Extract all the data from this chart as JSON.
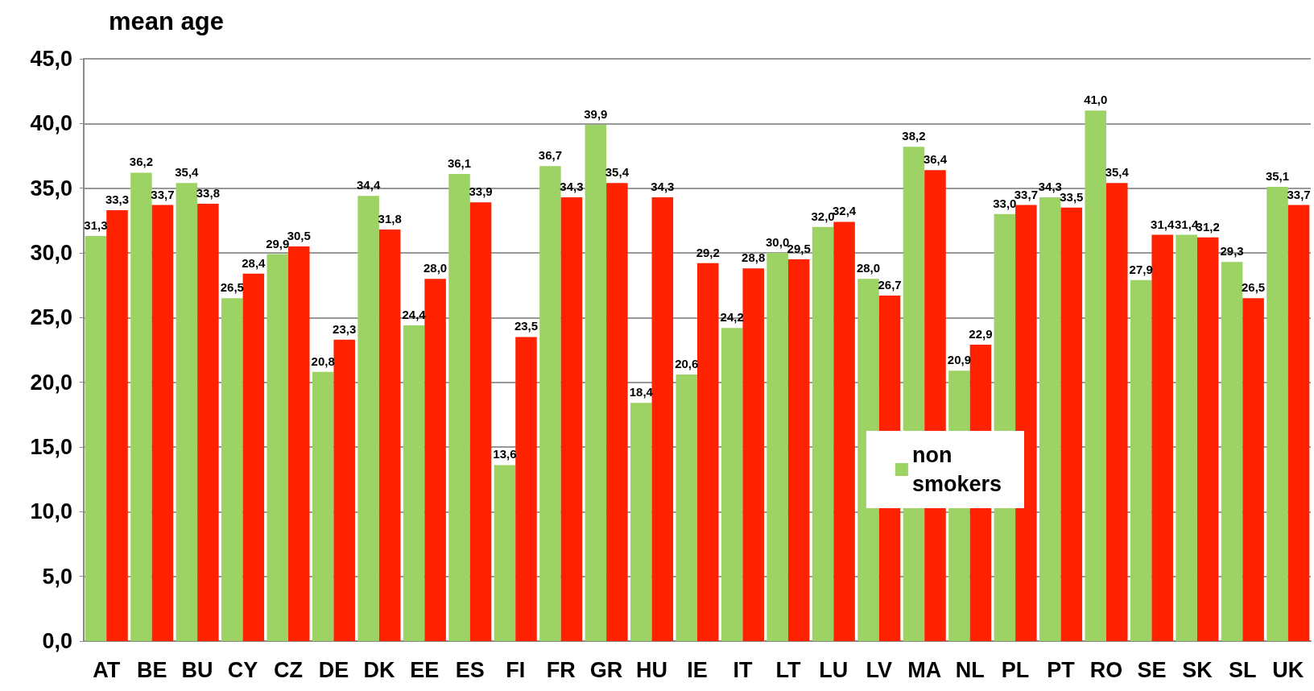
{
  "chart_data": {
    "type": "bar",
    "title": "mean age",
    "categories": [
      "AT",
      "BE",
      "BU",
      "CY",
      "CZ",
      "DE",
      "DK",
      "EE",
      "ES",
      "FI",
      "FR",
      "GR",
      "HU",
      "IE",
      "IT",
      "LT",
      "LU",
      "LV",
      "MA",
      "NL",
      "PL",
      "PT",
      "RO",
      "SE",
      "SK",
      "SL",
      "UK"
    ],
    "series": [
      {
        "name": "non smokers",
        "color": "#9cd364",
        "values": [
          31.3,
          36.2,
          35.4,
          26.5,
          29.9,
          20.8,
          34.4,
          24.4,
          36.1,
          13.6,
          36.7,
          39.9,
          18.4,
          20.6,
          24.2,
          30.0,
          32.0,
          28.0,
          38.2,
          20.9,
          33.0,
          34.3,
          41.0,
          27.9,
          31.4,
          29.3,
          35.1
        ],
        "value_labels": [
          "31,3",
          "36,2",
          "35,4",
          "26,5",
          "29,9",
          "20,8",
          "34,4",
          "24,4",
          "36,1",
          "13,6",
          "36,7",
          "39,9",
          "18,4",
          "20,6",
          "24,2",
          "30,0",
          "32,0",
          "28,0",
          "38,2",
          "20,9",
          "33,0",
          "34,3",
          "41,0",
          "27,9",
          "31,4",
          "29,3",
          "35,1"
        ]
      },
      {
        "color": "#ff2200",
        "values": [
          33.3,
          33.7,
          33.8,
          28.4,
          30.5,
          23.3,
          31.8,
          28.0,
          33.9,
          23.5,
          34.3,
          35.4,
          34.3,
          29.2,
          28.8,
          29.5,
          32.4,
          26.7,
          36.4,
          22.9,
          33.7,
          33.5,
          35.4,
          31.4,
          31.2,
          26.5,
          33.7
        ],
        "value_labels": [
          "33,3",
          "33,7",
          "33,8",
          "28,4",
          "30,5",
          "23,3",
          "31,8",
          "28,0",
          "33,9",
          "23,5",
          "34,3",
          "35,4",
          "34,3",
          "29,2",
          "28,8",
          "29,5",
          "32,4",
          "26,7",
          "36,4",
          "22,9",
          "33,7",
          "33,5",
          "35,4",
          "31,4",
          "31,2",
          "26,5",
          "33,7"
        ]
      }
    ],
    "ylim": [
      0,
      45
    ],
    "yticks": [
      {
        "value": 0,
        "label": "0,0"
      },
      {
        "value": 5,
        "label": "5,0"
      },
      {
        "value": 10,
        "label": "10,0"
      },
      {
        "value": 15,
        "label": "15,0"
      },
      {
        "value": 20,
        "label": "20,0"
      },
      {
        "value": 25,
        "label": "25,0"
      },
      {
        "value": 30,
        "label": "30,0"
      },
      {
        "value": 35,
        "label": "35,0"
      },
      {
        "value": 40,
        "label": "40,0"
      },
      {
        "value": 45,
        "label": "45,0"
      }
    ],
    "grid": "y",
    "legend": "right"
  }
}
